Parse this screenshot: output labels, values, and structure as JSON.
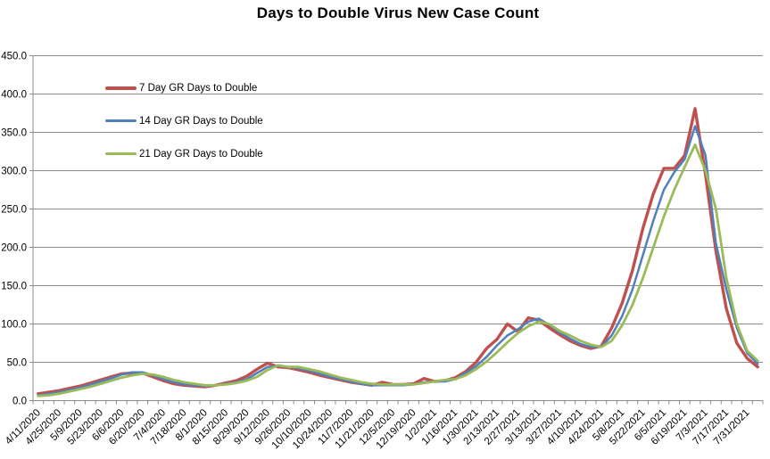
{
  "title": "Days to Double Virus New Case Count",
  "axes": {
    "ytick_labels": [
      "0.0",
      "50.0",
      "100.0",
      "150.0",
      "200.0",
      "250.0",
      "300.0",
      "350.0",
      "400.0",
      "450.0"
    ],
    "axis_color": "#8C8C8C",
    "gridline_color": "#8C8C8C",
    "label_color": "#000000"
  },
  "chart_data": {
    "type": "line",
    "title": "Days to Double Virus New Case Count",
    "xlabel": "",
    "ylabel": "",
    "ylim": [
      0,
      450
    ],
    "ytick_step": 50,
    "grid": true,
    "legend_position": "inside-top-left",
    "x_label_every": 2,
    "x": [
      "4/11/2020",
      "4/18/2020",
      "4/25/2020",
      "5/2/2020",
      "5/9/2020",
      "5/16/2020",
      "5/23/2020",
      "5/30/2020",
      "6/6/2020",
      "6/13/2020",
      "6/20/2020",
      "6/27/2020",
      "7/4/2020",
      "7/11/2020",
      "7/18/2020",
      "7/25/2020",
      "8/1/2020",
      "8/8/2020",
      "8/15/2020",
      "8/22/2020",
      "8/29/2020",
      "9/5/2020",
      "9/12/2020",
      "9/19/2020",
      "9/26/2020",
      "10/3/2020",
      "10/10/2020",
      "10/17/2020",
      "10/24/2020",
      "10/31/2020",
      "11/7/2020",
      "11/14/2020",
      "11/21/2020",
      "11/28/2020",
      "12/5/2020",
      "12/12/2020",
      "12/19/2020",
      "12/26/2020",
      "1/2/2021",
      "1/9/2021",
      "1/16/2021",
      "1/23/2021",
      "1/30/2021",
      "2/6/2021",
      "2/13/2021",
      "2/20/2021",
      "2/27/2021",
      "3/6/2021",
      "3/13/2021",
      "3/20/2021",
      "3/27/2021",
      "4/3/2021",
      "4/10/2021",
      "4/17/2021",
      "4/24/2021",
      "5/1/2021",
      "5/8/2021",
      "5/15/2021",
      "5/22/2021",
      "5/29/2021",
      "6/5/2021",
      "6/12/2021",
      "6/19/2021",
      "6/26/2021",
      "7/3/2021",
      "7/10/2021",
      "7/17/2021",
      "7/24/2021",
      "7/31/2021",
      "8/7/2021"
    ],
    "series": [
      {
        "name": "7 Day GR Days to Double",
        "color": "#C0504D",
        "stroke_width": 3.4,
        "values": [
          9,
          11,
          13,
          16,
          19,
          23,
          27,
          31,
          35,
          36,
          36,
          31,
          26,
          22,
          20,
          19,
          18,
          20,
          23,
          26,
          32,
          41,
          49,
          44,
          43,
          40,
          37,
          33,
          30,
          27,
          24,
          22,
          20,
          24,
          21,
          21,
          22,
          29,
          25,
          26,
          30,
          38,
          50,
          68,
          80,
          100,
          90,
          108,
          105,
          95,
          86,
          78,
          72,
          68,
          71,
          95,
          127,
          170,
          225,
          270,
          303,
          303,
          320,
          381,
          295,
          195,
          120,
          75,
          55,
          44
        ]
      },
      {
        "name": "14 Day GR Days to Double",
        "color": "#4F81BD",
        "stroke_width": 2.5,
        "values": [
          7,
          9,
          11,
          14,
          17,
          21,
          25,
          29,
          34,
          37,
          37,
          33,
          28,
          24,
          21,
          20,
          19,
          20,
          22,
          24,
          28,
          36,
          44,
          45,
          44,
          42,
          39,
          35,
          31,
          28,
          25,
          22,
          20,
          20,
          20,
          20,
          21,
          24,
          25,
          25,
          28,
          36,
          45,
          57,
          72,
          85,
          93,
          103,
          107,
          99,
          89,
          81,
          74,
          70,
          70,
          85,
          110,
          145,
          190,
          235,
          275,
          298,
          315,
          358,
          320,
          205,
          145,
          95,
          62,
          48
        ]
      },
      {
        "name": "21 Day GR Days to Double",
        "color": "#9BBB59",
        "stroke_width": 2.8,
        "values": [
          6,
          7,
          9,
          12,
          15,
          18,
          22,
          26,
          30,
          33,
          35,
          34,
          31,
          27,
          24,
          22,
          20,
          20,
          21,
          23,
          26,
          31,
          40,
          46,
          44,
          44,
          41,
          38,
          34,
          30,
          27,
          24,
          22,
          21,
          21,
          21,
          21,
          23,
          25,
          27,
          28,
          33,
          41,
          51,
          63,
          76,
          88,
          97,
          103,
          100,
          91,
          85,
          78,
          73,
          70,
          78,
          98,
          125,
          160,
          200,
          240,
          275,
          305,
          334,
          300,
          250,
          160,
          100,
          65,
          52
        ]
      }
    ]
  }
}
